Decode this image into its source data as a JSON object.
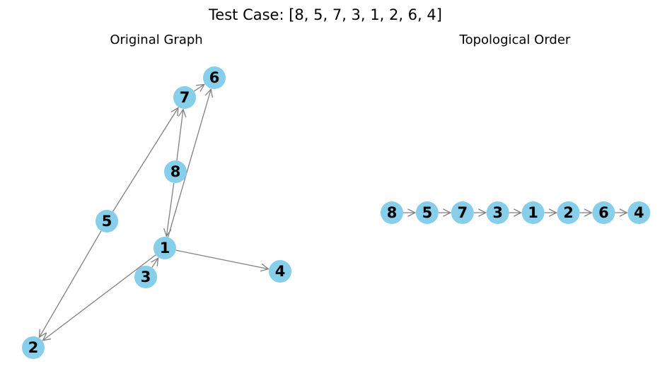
{
  "figure": {
    "title": "Test Case: [8, 5, 7, 3, 1, 2, 6, 4]"
  },
  "original_graph": {
    "title": "Original Graph",
    "nodes": [
      "1",
      "2",
      "3",
      "4",
      "5",
      "6",
      "7",
      "8"
    ],
    "edges": [
      [
        "5",
        "7"
      ],
      [
        "5",
        "2"
      ],
      [
        "7",
        "6"
      ],
      [
        "8",
        "7"
      ],
      [
        "8",
        "1"
      ],
      [
        "1",
        "6"
      ],
      [
        "1",
        "2"
      ],
      [
        "1",
        "4"
      ],
      [
        "3",
        "1"
      ]
    ]
  },
  "topological_order": {
    "title": "Topological Order",
    "order": [
      "8",
      "5",
      "7",
      "3",
      "1",
      "2",
      "6",
      "4"
    ],
    "edges": [
      [
        "8",
        "5"
      ],
      [
        "5",
        "7"
      ],
      [
        "7",
        "3"
      ],
      [
        "3",
        "1"
      ],
      [
        "1",
        "2"
      ],
      [
        "2",
        "6"
      ],
      [
        "6",
        "4"
      ]
    ]
  },
  "style": {
    "node_color": "#87ceeb",
    "edge_color": "#808080"
  }
}
